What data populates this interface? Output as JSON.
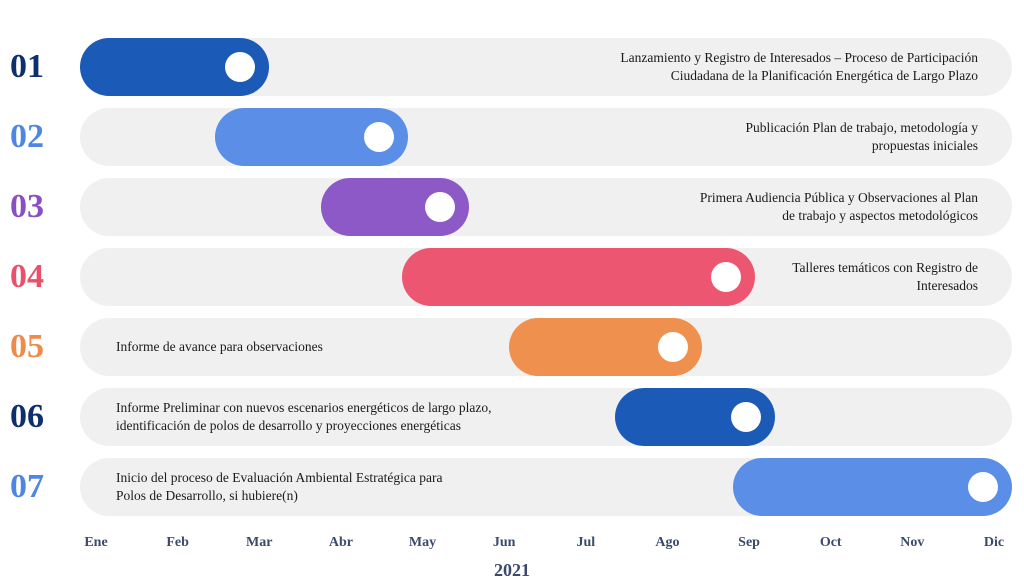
{
  "chart_data": {
    "type": "gantt",
    "year_label": "2021",
    "months": [
      "Ene",
      "Feb",
      "Mar",
      "Abr",
      "May",
      "Jun",
      "Jul",
      "Ago",
      "Sep",
      "Oct",
      "Nov",
      "Dic"
    ],
    "tasks": [
      {
        "number": "01",
        "label": "Lanzamiento y Registro de Interesados – Proceso de Participación\nCiudadana de la Planificación Energética de Largo Plazo",
        "label_side": "right",
        "start": 0.0,
        "end": 1.9,
        "color": "#1c5ab8",
        "number_color": "#0d2f6e"
      },
      {
        "number": "02",
        "label": "Publicación Plan de trabajo, metodología y\npropuestas iniciales",
        "label_side": "right",
        "start": 1.65,
        "end": 3.6,
        "color": "#5b8ee6",
        "number_color": "#4f86e2"
      },
      {
        "number": "03",
        "label": "Primera Audiencia Pública y Observaciones al Plan\nde trabajo y aspectos metodológicos",
        "label_side": "right",
        "start": 2.95,
        "end": 4.35,
        "color": "#8c59c7",
        "number_color": "#8a4fc4"
      },
      {
        "number": "04",
        "label": "Talleres temáticos con Registro de\nInteresados",
        "label_side": "right",
        "start": 3.95,
        "end": 7.85,
        "color": "#ec5670",
        "number_color": "#e8506c"
      },
      {
        "number": "05",
        "label": "Informe de avance para observaciones",
        "label_side": "left",
        "start": 5.25,
        "end": 7.2,
        "color": "#f0904f",
        "number_color": "#ef8a4a"
      },
      {
        "number": "06",
        "label": "Informe Preliminar con nuevos escenarios energéticos de largo plazo,\nidentificación de polos de desarrollo y proyecciones energéticas",
        "label_side": "left",
        "start": 6.55,
        "end": 8.1,
        "color": "#1c5ab8",
        "number_color": "#0d2f6e"
      },
      {
        "number": "07",
        "label": "Inicio del proceso de Evaluación Ambiental Estratégica para\nPolos de Desarrollo, si hubiere(n)",
        "label_side": "left",
        "start": 8.0,
        "end": 11.2,
        "color": "#5b8ee6",
        "number_color": "#4f86e2"
      }
    ]
  }
}
